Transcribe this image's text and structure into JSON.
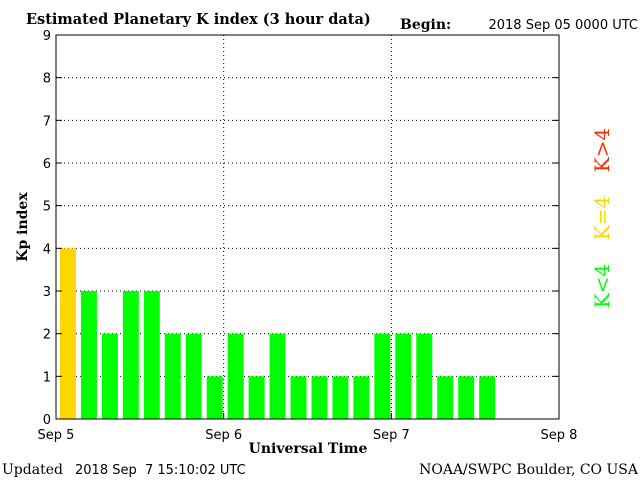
{
  "chart_data": {
    "type": "bar",
    "title": "Estimated Planetary K index (3 hour data)",
    "begin_label": "Begin:",
    "begin_value": "2018 Sep 05 0000 UTC",
    "xlabel": "Universal Time",
    "ylabel": "Kp index",
    "ylim": [
      0,
      9
    ],
    "yticks": [
      "0",
      "1",
      "2",
      "3",
      "4",
      "5",
      "6",
      "7",
      "8",
      "9"
    ],
    "xticks": [
      "Sep 5",
      "Sep 6",
      "Sep 7",
      "Sep 8"
    ],
    "bar_interval_hours": 3,
    "total_slots": 24,
    "values": [
      4,
      3,
      2,
      3,
      3,
      2,
      2,
      1,
      2,
      1,
      2,
      1,
      1,
      1,
      1,
      2,
      2,
      2,
      1,
      1,
      1
    ],
    "grid": true,
    "legend": [
      {
        "label": "K<4",
        "color": "#00ff00"
      },
      {
        "label": "K=4",
        "color": "#ffd700"
      },
      {
        "label": "K>4",
        "color": "#ff2a00"
      }
    ],
    "colors": {
      "low": "#00ff00",
      "equal": "#ffd700",
      "high": "#ff2a00"
    }
  },
  "footer": {
    "updated_label": "Updated",
    "updated_value": "2018 Sep  7 15:10:02 UTC",
    "source": "NOAA/SWPC Boulder, CO USA"
  }
}
